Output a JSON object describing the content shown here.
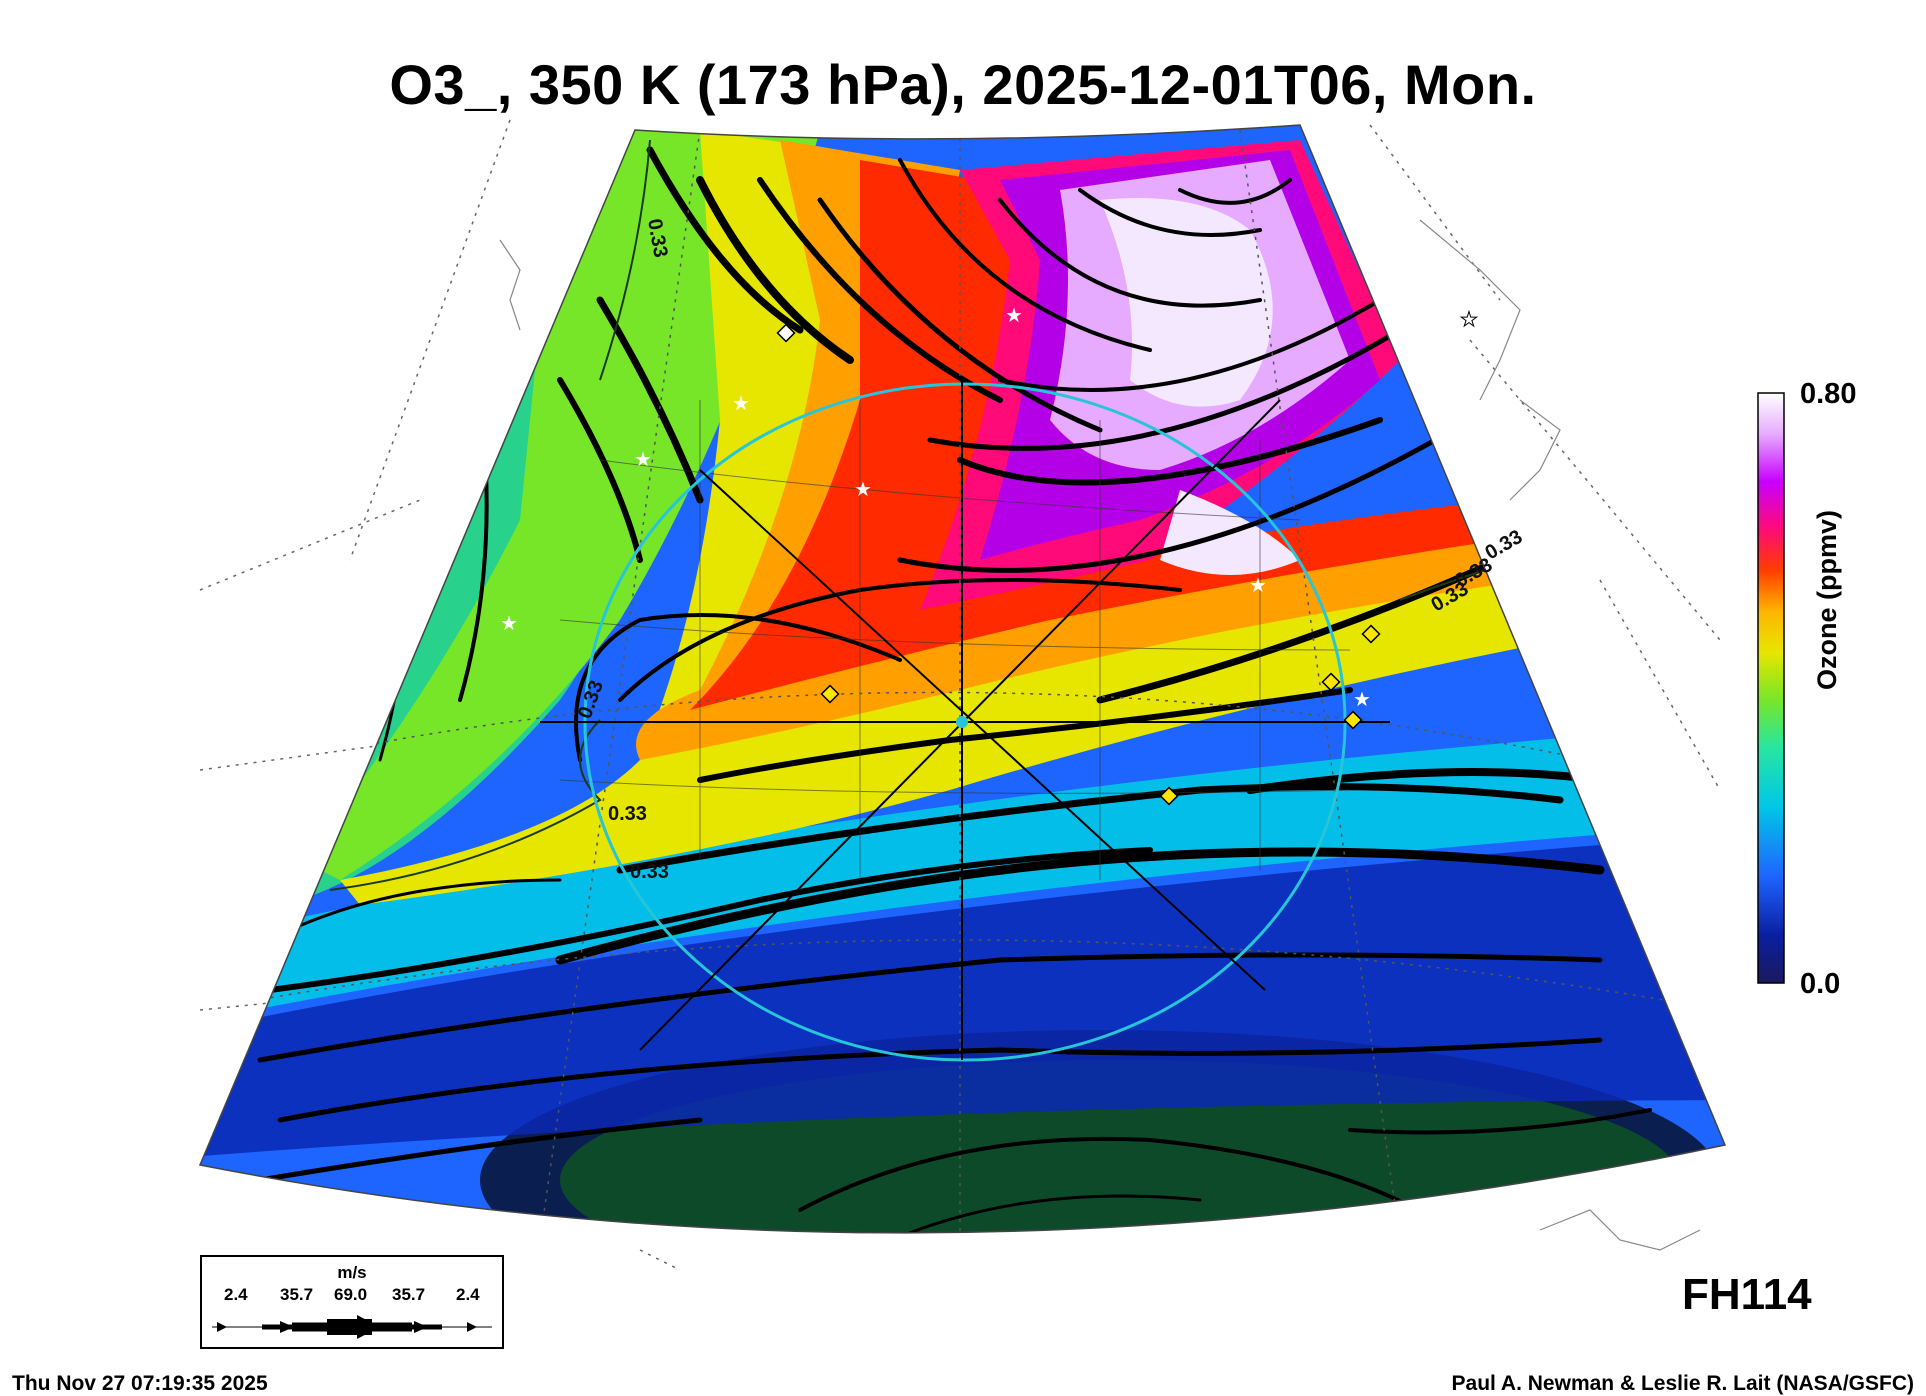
{
  "title": "O3_, 350 K (173 hPa), 2025-12-01T06, Mon.",
  "colorbar": {
    "max_label": "0.80",
    "min_label": "0.0",
    "axis_label": "Ozone (ppmv)",
    "range": [
      0.0,
      0.8
    ],
    "colors": [
      "#1a1a5e",
      "#0a1ea0",
      "#1e64ff",
      "#00c8e6",
      "#28e6a0",
      "#78e628",
      "#e6e600",
      "#ffb400",
      "#ff3c00",
      "#ff0a78",
      "#c800ff",
      "#e6aaff",
      "#ffffff"
    ]
  },
  "contour_labels": [
    "0.33",
    "0.33",
    "0.33",
    "0.33",
    "0.33",
    "0.33",
    "0.33"
  ],
  "wind_legend": {
    "units": "m/s",
    "values": [
      "2.4",
      "35.7",
      "69.0",
      "35.7",
      "2.4"
    ]
  },
  "forecast_hour": "FH114",
  "footer": {
    "timestamp": "Thu Nov 27 07:19:35 2025",
    "credit": "Paul A. Newman & Leslie R. Lait (NASA/GSFC)"
  }
}
